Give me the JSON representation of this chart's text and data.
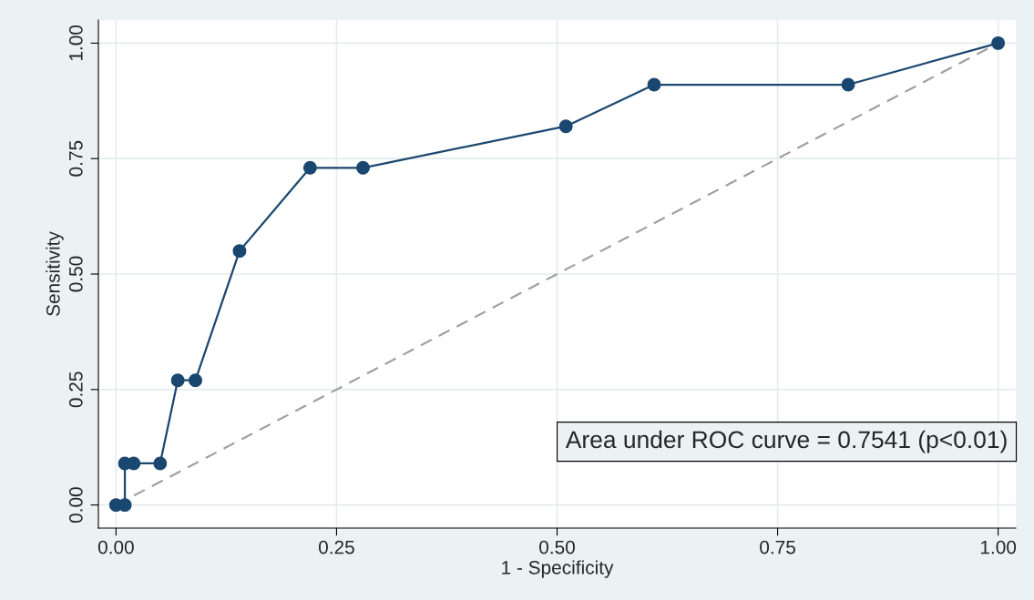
{
  "chart_data": {
    "type": "line",
    "xlabel": "1 - Specificity",
    "ylabel": "Sensitivity",
    "series": [
      {
        "color": "#1a476f",
        "marker": "circle",
        "line_style": "solid",
        "x": [
          0,
          0.01,
          0.01,
          0.02,
          0.05,
          0.07,
          0.09,
          0.14,
          0.22,
          0.28,
          0.51,
          0.61,
          0.83,
          1
        ],
        "values": [
          0,
          0,
          0.09,
          0.09,
          0.09,
          0.27,
          0.27,
          0.55,
          0.73,
          0.73,
          0.82,
          0.91,
          0.91,
          1
        ]
      },
      {
        "color": "#a0a0a0",
        "marker": "none",
        "line_style": "dashed",
        "x": [
          0,
          1
        ],
        "values": [
          0,
          1
        ]
      }
    ],
    "xlim": [
      -0.02,
      1.02
    ],
    "ylim": [
      -0.05,
      1.05
    ],
    "xticks": [
      {
        "value": 0,
        "label": "0.00"
      },
      {
        "value": 0.25,
        "label": "0.25"
      },
      {
        "value": 0.5,
        "label": "0.50"
      },
      {
        "value": 0.75,
        "label": "0.75"
      },
      {
        "value": 1,
        "label": "1.00"
      }
    ],
    "yticks": [
      {
        "value": 0,
        "label": "0.00"
      },
      {
        "value": 0.25,
        "label": "0.25"
      },
      {
        "value": 0.5,
        "label": "0.50"
      },
      {
        "value": 0.75,
        "label": "0.75"
      },
      {
        "value": 1,
        "label": "1.00"
      }
    ],
    "grid": true,
    "annotations": [
      "Area under ROC curve = 0.7541 (p<0.01)"
    ]
  }
}
